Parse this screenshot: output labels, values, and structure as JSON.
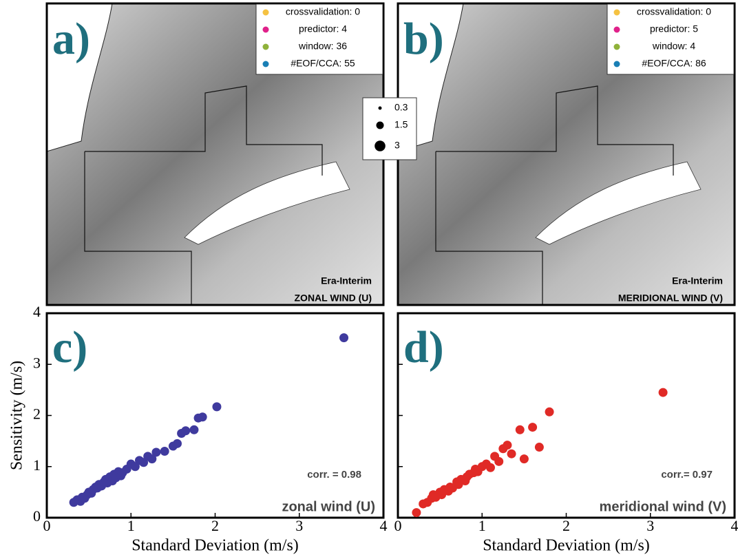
{
  "maps": [
    {
      "label": "a)",
      "legend": [
        {
          "name": "crossvalidation: 0",
          "color": "#f5c242"
        },
        {
          "name": "predictor: 4",
          "color": "#e0218a"
        },
        {
          "name": "window: 36",
          "color": "#8fb23a"
        },
        {
          "name": "#EOF/CCA: 55",
          "color": "#1a7fb5"
        }
      ],
      "source": "Era-Interim",
      "variable": "ZONAL WIND (U)"
    },
    {
      "label": "b)",
      "legend": [
        {
          "name": "crossvalidation: 0",
          "color": "#f5c242"
        },
        {
          "name": "predictor: 5",
          "color": "#e0218a"
        },
        {
          "name": "window: 4",
          "color": "#8fb23a"
        },
        {
          "name": "#EOF/CCA: 86",
          "color": "#1a7fb5"
        }
      ],
      "source": "Era-Interim",
      "variable": "MERIDIONAL WIND (V)"
    }
  ],
  "size_legend": {
    "values": [
      0.3,
      1.5,
      3
    ]
  },
  "chart_data": [
    {
      "type": "scatter",
      "label": "c)",
      "ylabel": "Sensitivity (m/s)",
      "xlabel": "Standard Deviation (m/s)",
      "annotation": "corr. = 0.98",
      "name": "zonal wind (U)",
      "color": "#3f3a9e",
      "x": [
        0.32,
        0.36,
        0.4,
        0.42,
        0.45,
        0.48,
        0.5,
        0.53,
        0.55,
        0.58,
        0.6,
        0.62,
        0.65,
        0.68,
        0.7,
        0.72,
        0.75,
        0.78,
        0.8,
        0.82,
        0.85,
        0.88,
        0.9,
        0.95,
        1.0,
        1.05,
        1.1,
        1.15,
        1.2,
        1.25,
        1.3,
        1.4,
        1.5,
        1.55,
        1.6,
        1.65,
        1.75,
        1.8,
        1.85,
        2.02,
        3.53
      ],
      "y": [
        0.3,
        0.35,
        0.32,
        0.4,
        0.38,
        0.45,
        0.5,
        0.48,
        0.55,
        0.6,
        0.58,
        0.65,
        0.62,
        0.7,
        0.75,
        0.68,
        0.8,
        0.72,
        0.85,
        0.78,
        0.9,
        0.82,
        0.88,
        0.95,
        1.05,
        1.0,
        1.12,
        1.08,
        1.2,
        1.15,
        1.28,
        1.3,
        1.4,
        1.45,
        1.65,
        1.7,
        1.72,
        1.95,
        1.97,
        2.17,
        3.52
      ],
      "xlim": [
        0,
        4
      ],
      "ylim": [
        0,
        4
      ],
      "xticks": [
        0,
        1,
        2,
        3,
        4
      ],
      "yticks": [
        0,
        1,
        2,
        3,
        4
      ]
    },
    {
      "type": "scatter",
      "label": "d)",
      "xlabel": "Standard Deviation (m/s)",
      "annotation": "corr.= 0.97",
      "name": "meridional wind (V)",
      "color": "#e02a26",
      "x": [
        0.22,
        0.3,
        0.35,
        0.4,
        0.42,
        0.45,
        0.5,
        0.52,
        0.55,
        0.6,
        0.62,
        0.65,
        0.7,
        0.72,
        0.75,
        0.8,
        0.82,
        0.85,
        0.9,
        0.92,
        0.95,
        1.0,
        1.05,
        1.1,
        1.15,
        1.2,
        1.25,
        1.3,
        1.35,
        1.45,
        1.5,
        1.6,
        1.68,
        1.8,
        3.15
      ],
      "y": [
        0.1,
        0.27,
        0.3,
        0.38,
        0.45,
        0.4,
        0.5,
        0.45,
        0.55,
        0.52,
        0.6,
        0.58,
        0.7,
        0.65,
        0.75,
        0.72,
        0.8,
        0.85,
        0.88,
        0.95,
        0.9,
        1.0,
        1.05,
        0.98,
        1.2,
        1.1,
        1.35,
        1.42,
        1.25,
        1.72,
        1.15,
        1.77,
        1.38,
        2.07,
        2.45
      ],
      "xlim": [
        0,
        4
      ],
      "ylim": [
        0,
        4
      ],
      "xticks": [
        0,
        1,
        2,
        3,
        4
      ],
      "yticks": [
        0,
        1,
        2,
        3,
        4
      ]
    }
  ]
}
